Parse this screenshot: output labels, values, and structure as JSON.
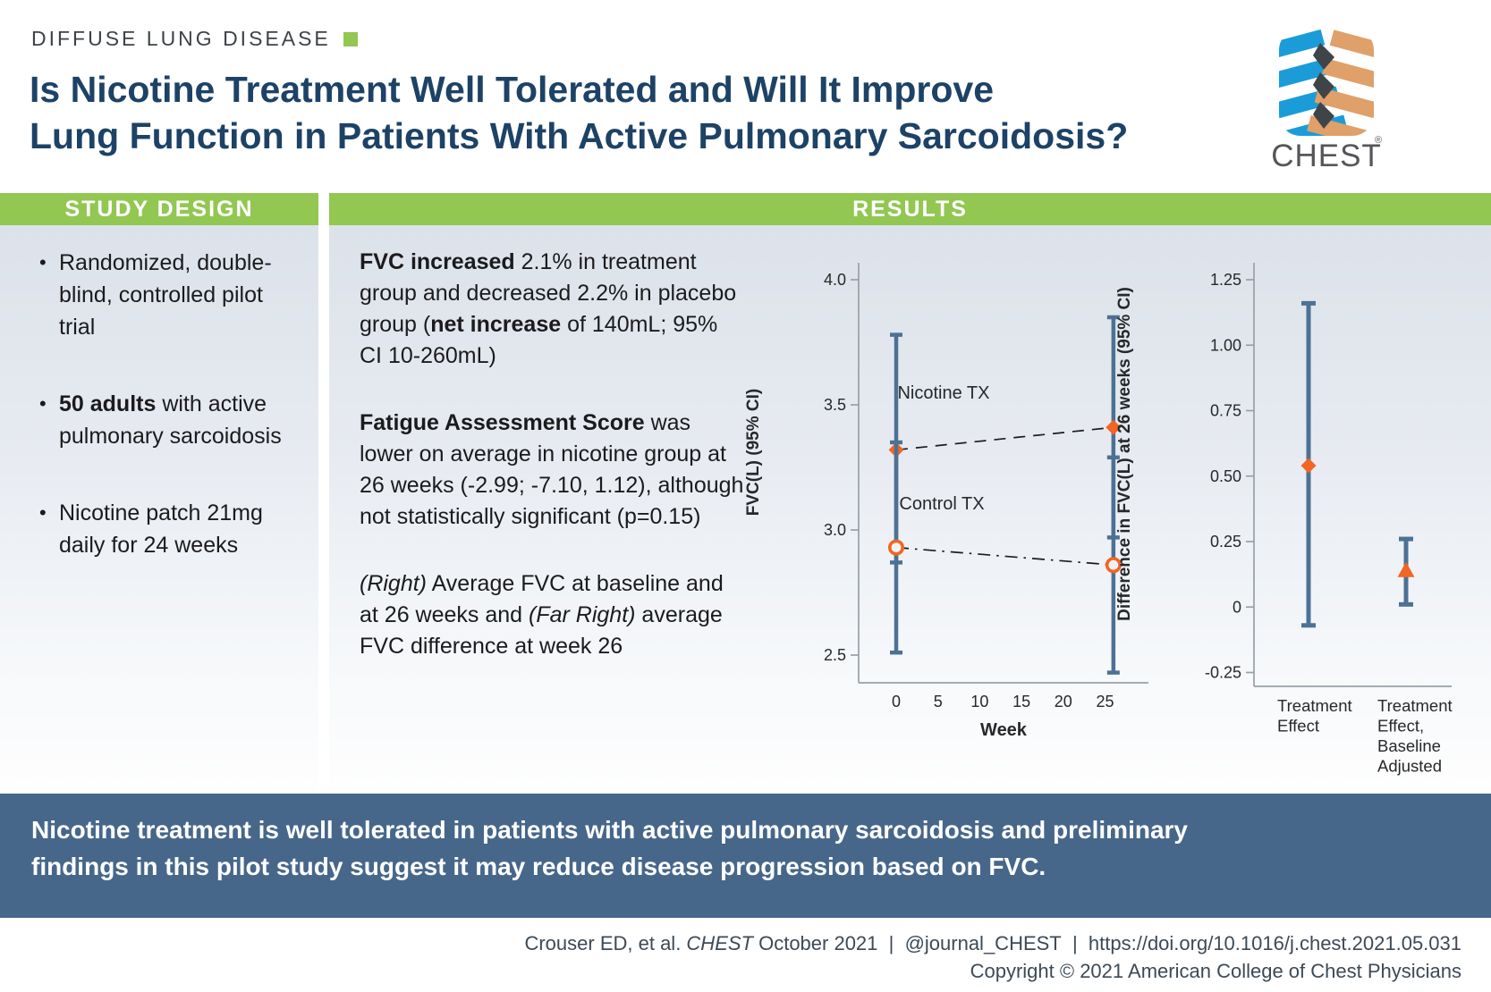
{
  "page": {
    "kicker": "DIFFUSE LUNG DISEASE",
    "title_lines": [
      "Is Nicotine Treatment Well Tolerated and Will It Improve",
      "Lung Function in Patients With Active Pulmonary Sarcoidosis?"
    ]
  },
  "logo": {
    "wordmark": "CHEST",
    "reg": "®"
  },
  "sections": {
    "study_design": {
      "header": "STUDY DESIGN",
      "bullets": [
        [
          {
            "t": "Randomized, double-blind, controlled pilot trial"
          }
        ],
        [
          {
            "t": "50 adults",
            "b": true
          },
          {
            "t": " with active pulmonary sarcoidosis"
          }
        ],
        [
          {
            "t": "Nicotine patch 21mg daily for 24 weeks"
          }
        ]
      ]
    },
    "results": {
      "header": "RESULTS",
      "paragraphs": [
        [
          {
            "t": "FVC increased",
            "b": true
          },
          {
            "t": " 2.1% in treatment group and decreased 2.2% in placebo group ("
          },
          {
            "t": "net increase",
            "b": true
          },
          {
            "t": " of 140mL; 95% CI 10-260mL)"
          }
        ],
        [
          {
            "t": "Fatigue Assessment Score",
            "b": true
          },
          {
            "t": " was lower on average in nicotine group at 26 weeks (-2.99; -7.10, 1.12), although not statistically significant (p=0.15)"
          }
        ],
        [
          {
            "t": "(Right)",
            "i": true
          },
          {
            "t": " Average FVC at baseline and at 26 weeks and "
          },
          {
            "t": "(Far Right)",
            "i": true
          },
          {
            "t": " average FVC difference at week 26"
          }
        ]
      ]
    }
  },
  "banner": {
    "line1": "Nicotine treatment is well tolerated in patients with active pulmonary sarcoidosis and preliminary",
    "line2": "findings in this pilot study suggest it may reduce disease progression based on FVC."
  },
  "footer": {
    "line1_segments": [
      {
        "t": "Crouser ED, et al. "
      },
      {
        "t": "CHEST",
        "i": true
      },
      {
        "t": " October 2021  |  @journal_CHEST  |  https://doi.org/10.1016/j.chest.2021.05.031"
      }
    ],
    "line2": "Copyright © 2021 American College of Chest Physicians"
  },
  "colors": {
    "accent_green": "#92c752",
    "banner_blue": "#46678a",
    "error_bar": "#4d7195",
    "marker_orange": "#f26522",
    "title_navy": "#1d4266",
    "axis_gray": "#97a0a8",
    "logo_blue": "#1b9cd8",
    "logo_tan": "#dfa069"
  },
  "chart_data": [
    {
      "type": "line",
      "subtype": "means-with-95ci-error-bars",
      "title": "Average FVC at baseline and at 26 weeks",
      "xlabel": "Week",
      "ylabel": "FVC(L) (95% CI)",
      "x_ticks": [
        0,
        5,
        10,
        15,
        20,
        25
      ],
      "y_ticks": [
        4.0,
        3.5,
        3.0,
        2.5
      ],
      "y_tick_labels": [
        "4.0",
        "3.5",
        "3.0",
        "2.5"
      ],
      "xlim": [
        -4.5,
        34
      ],
      "ylim": [
        2.39,
        4.08
      ],
      "grid": false,
      "series": [
        {
          "name": "Nicotine TX",
          "marker": "diamond",
          "line_style": "dashed",
          "x": [
            0,
            26
          ],
          "means": [
            3.32,
            3.41
          ],
          "ci_low": [
            2.87,
            2.97
          ],
          "ci_high": [
            3.78,
            3.85
          ]
        },
        {
          "name": "Control TX",
          "marker": "open-circle",
          "line_style": "dashdot",
          "x": [
            0,
            26
          ],
          "means": [
            2.93,
            2.86
          ],
          "ci_low": [
            2.51,
            2.43
          ],
          "ci_high": [
            3.35,
            3.29
          ]
        }
      ]
    },
    {
      "type": "scatter",
      "subtype": "point-estimates-with-95ci-error-bars",
      "title": "Average FVC difference at week 26",
      "xlabel": "",
      "ylabel": "Difference in FVC(L) at 26 weeks (95% CI)",
      "y_ticks": [
        1.25,
        1.0,
        0.75,
        0.5,
        0.25,
        0,
        -0.25
      ],
      "y_tick_labels": [
        "1.25",
        "1.00",
        "0.75",
        "0.50",
        "0.25",
        "0",
        "-0.25"
      ],
      "ylim": [
        -0.3,
        1.31
      ],
      "grid": false,
      "points": [
        {
          "label_lines": [
            "Treatment",
            "Effect"
          ],
          "marker": "diamond",
          "value": 0.54,
          "ci_low": -0.07,
          "ci_high": 1.16
        },
        {
          "label_lines": [
            "Treatment",
            "Effect,",
            "Baseline",
            "Adjusted"
          ],
          "marker": "triangle",
          "value": 0.14,
          "ci_low": 0.01,
          "ci_high": 0.26
        }
      ]
    }
  ]
}
